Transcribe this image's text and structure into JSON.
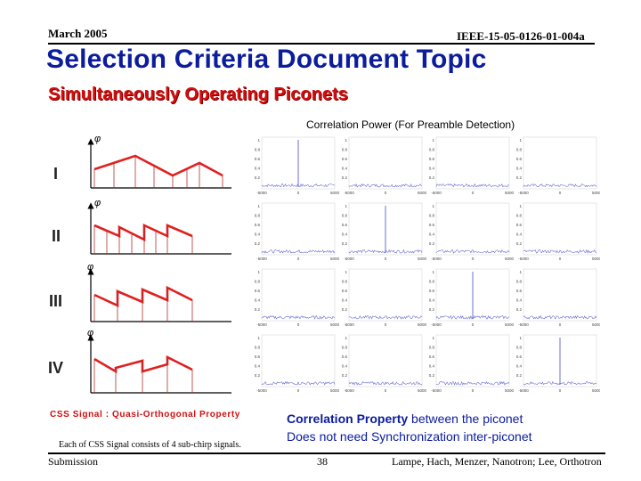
{
  "header": {
    "date": "March 2005",
    "doc_id": "IEEE-15-05-0126-01-004a"
  },
  "title": "Selection Criteria Document Topic",
  "subtitle": "Simultaneously Operating Piconets",
  "correlation": {
    "title": "Correlation Power (For Preamble Detection)"
  },
  "rows": [
    {
      "label": "I",
      "peak_index": 0
    },
    {
      "label": "II",
      "peak_index": 1
    },
    {
      "label": "III",
      "peak_index": 2
    },
    {
      "label": "IV",
      "peak_index": 3
    }
  ],
  "css_signal_label": "CSS Signal : Quasi-Orthogonal Property",
  "css_signal_note": "Each of CSS Signal consists of 4 sub-chirp signals.",
  "property": {
    "bold": "Correlation Property",
    "rest": " between the piconet",
    "line2": "Does not need Synchronization inter-piconet"
  },
  "footer": {
    "left": "Submission",
    "page": "38",
    "authors": "Lampe, Hach, Menzer, Nanotron; Lee, Orthotron"
  },
  "colors": {
    "title": "#0b1c9c",
    "accent": "#d10f0f",
    "plot_line": "#6d6fd0"
  }
}
